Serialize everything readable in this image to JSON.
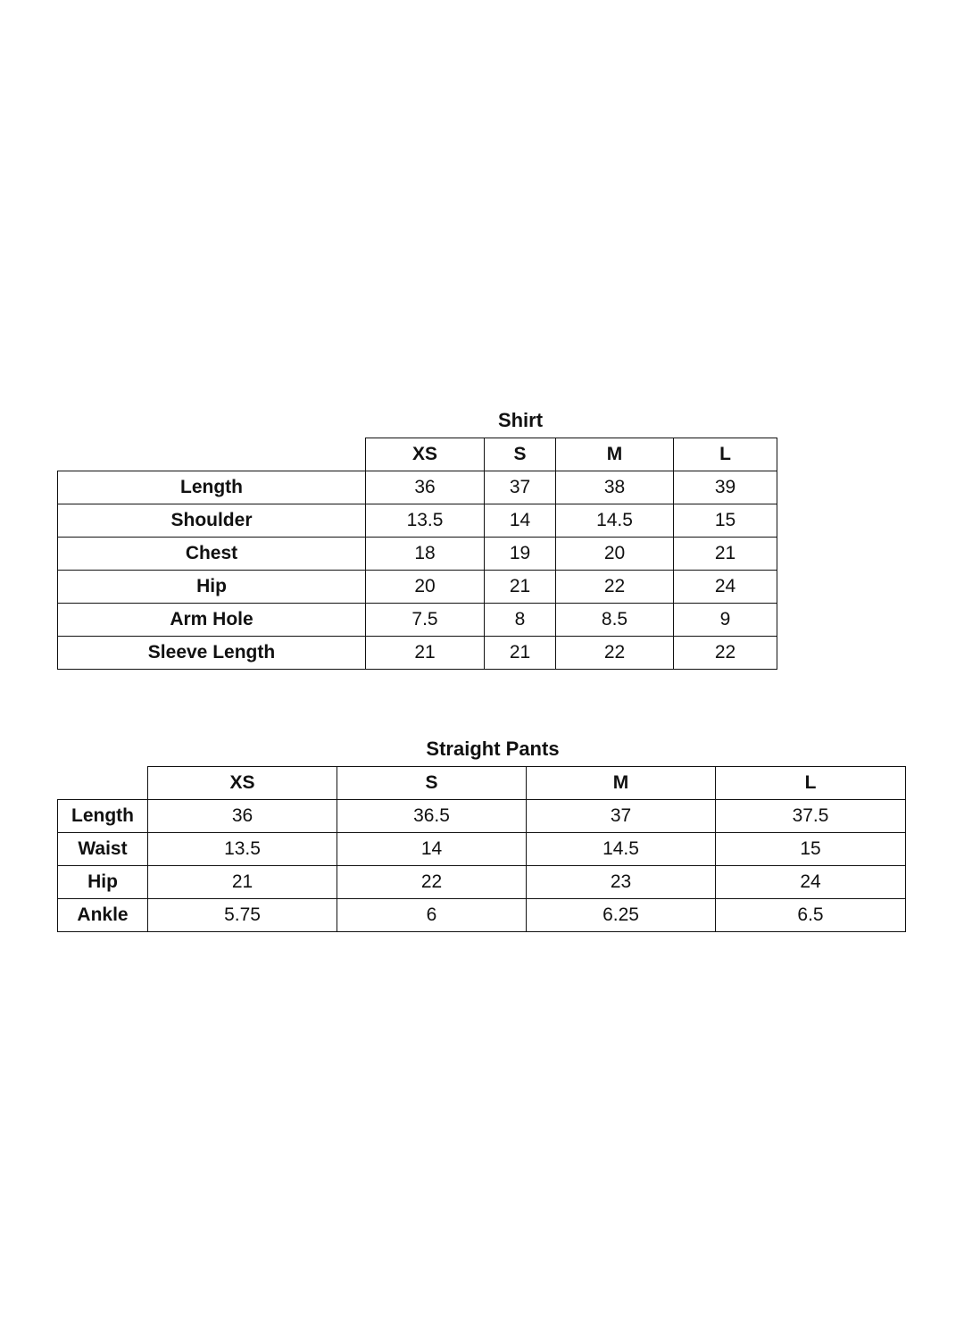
{
  "shirt": {
    "title": "Shirt",
    "sizes": [
      "XS",
      "S",
      "M",
      "L"
    ],
    "rows": [
      {
        "label": "Length",
        "values": [
          "36",
          "37",
          "38",
          "39"
        ]
      },
      {
        "label": "Shoulder",
        "values": [
          "13.5",
          "14",
          "14.5",
          "15"
        ]
      },
      {
        "label": "Chest",
        "values": [
          "18",
          "19",
          "20",
          "21"
        ]
      },
      {
        "label": "Hip",
        "values": [
          "20",
          "21",
          "22",
          "24"
        ]
      },
      {
        "label": "Arm Hole",
        "values": [
          "7.5",
          "8",
          "8.5",
          "9"
        ]
      },
      {
        "label": "Sleeve Length",
        "values": [
          "21",
          "21",
          "22",
          "22"
        ]
      }
    ]
  },
  "pants": {
    "title": "Straight Pants",
    "sizes": [
      "XS",
      "S",
      "M",
      "L"
    ],
    "rows": [
      {
        "label": "Length",
        "values": [
          "36",
          "36.5",
          "37",
          "37.5"
        ]
      },
      {
        "label": "Waist",
        "values": [
          "13.5",
          "14",
          "14.5",
          "15"
        ]
      },
      {
        "label": "Hip",
        "values": [
          "21",
          "22",
          "23",
          "24"
        ]
      },
      {
        "label": "Ankle",
        "values": [
          "5.75",
          "6",
          "6.25",
          "6.5"
        ]
      }
    ]
  }
}
